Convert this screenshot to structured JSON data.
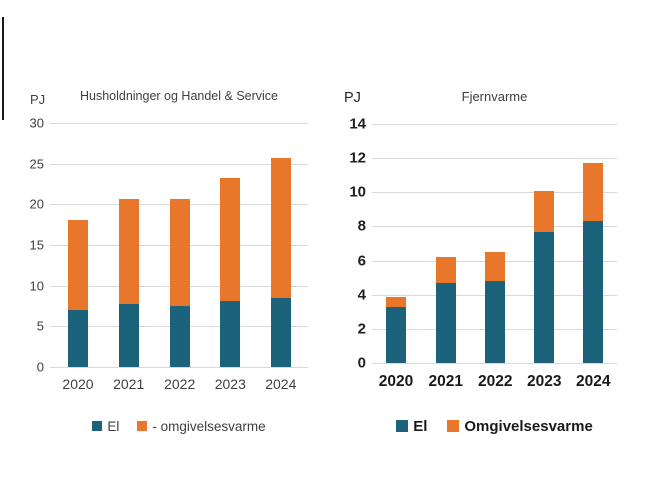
{
  "colors": {
    "el": "#1D627B",
    "omgivelsesvarme": "#E8762B",
    "gridline": "#D9D9D9"
  },
  "chart_data": [
    {
      "type": "bar",
      "stacked": true,
      "title": "Husholdninger og Handel & Service",
      "unit_label": "PJ",
      "categories": [
        "2020",
        "2021",
        "2022",
        "2023",
        "2024"
      ],
      "series": [
        {
          "name": "El",
          "color_key": "el",
          "values": [
            7.0,
            7.8,
            7.5,
            8.1,
            8.5
          ]
        },
        {
          "name": "- omgivelsesvarme",
          "color_key": "omgivelsesvarme",
          "values": [
            11.1,
            12.9,
            13.2,
            15.2,
            17.2
          ]
        }
      ],
      "totals": [
        18.1,
        20.7,
        20.7,
        23.3,
        25.7
      ],
      "ylim": [
        0,
        30
      ],
      "ytick_step": 5,
      "grid": "horizontal",
      "legend_position": "bottom"
    },
    {
      "type": "bar",
      "stacked": true,
      "title": "Fjernvarme",
      "unit_label": "PJ",
      "categories": [
        "2020",
        "2021",
        "2022",
        "2023",
        "2024"
      ],
      "series": [
        {
          "name": "El",
          "color_key": "el",
          "values": [
            3.3,
            4.7,
            4.8,
            7.7,
            8.3
          ]
        },
        {
          "name": "Omgivelsesvarme",
          "color_key": "omgivelsesvarme",
          "values": [
            0.6,
            1.5,
            1.7,
            2.4,
            3.4
          ]
        }
      ],
      "totals": [
        3.9,
        6.2,
        6.5,
        10.1,
        11.7
      ],
      "ylim": [
        0,
        14
      ],
      "ytick_step": 2,
      "grid": "horizontal",
      "legend_position": "bottom"
    }
  ]
}
